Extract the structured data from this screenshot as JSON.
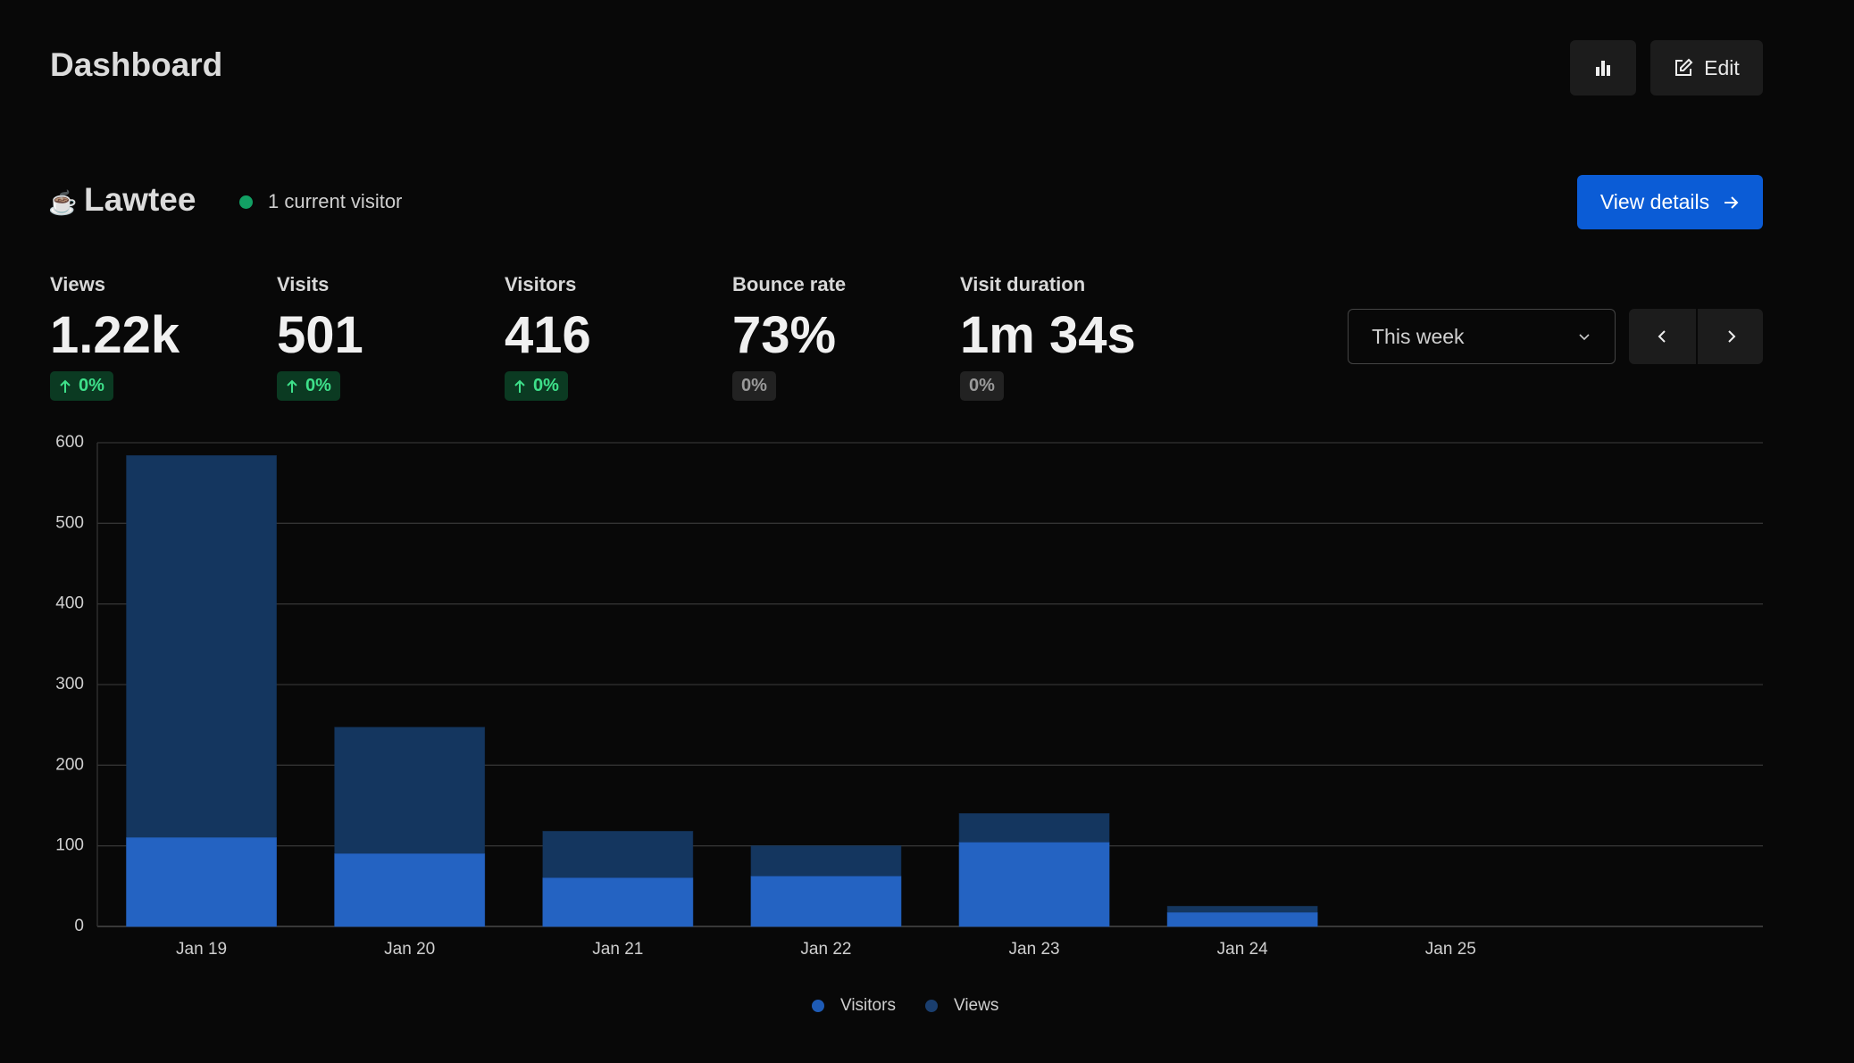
{
  "header": {
    "title": "Dashboard",
    "edit": "Edit"
  },
  "site": {
    "name": "Lawtee",
    "current": "1 current visitor",
    "details": "View details"
  },
  "stats": [
    {
      "label": "Views",
      "value": "1.22k",
      "change": "0%",
      "trend": "up"
    },
    {
      "label": "Visits",
      "value": "501",
      "change": "0%",
      "trend": "up"
    },
    {
      "label": "Visitors",
      "value": "416",
      "change": "0%",
      "trend": "up"
    },
    {
      "label": "Bounce rate",
      "value": "73%",
      "change": "0%",
      "trend": "flat"
    },
    {
      "label": "Visit duration",
      "value": "1m 34s",
      "change": "0%",
      "trend": "flat"
    }
  ],
  "range": "This week",
  "chart_data": {
    "type": "bar",
    "categories": [
      "Jan 19",
      "Jan 20",
      "Jan 21",
      "Jan 22",
      "Jan 23",
      "Jan 24",
      "Jan 25",
      null
    ],
    "series": [
      {
        "name": "Visitors",
        "color": "#2463c2",
        "values": [
          110,
          90,
          60,
          62,
          104,
          17,
          0,
          null
        ]
      },
      {
        "name": "Views",
        "color": "#14365f",
        "values": [
          584,
          247,
          118,
          100,
          140,
          25,
          0,
          null
        ]
      }
    ],
    "ylim": [
      0,
      600
    ],
    "yticks": [
      0,
      100,
      200,
      300,
      400,
      500,
      600
    ],
    "grid": true,
    "legend": "bottom"
  }
}
